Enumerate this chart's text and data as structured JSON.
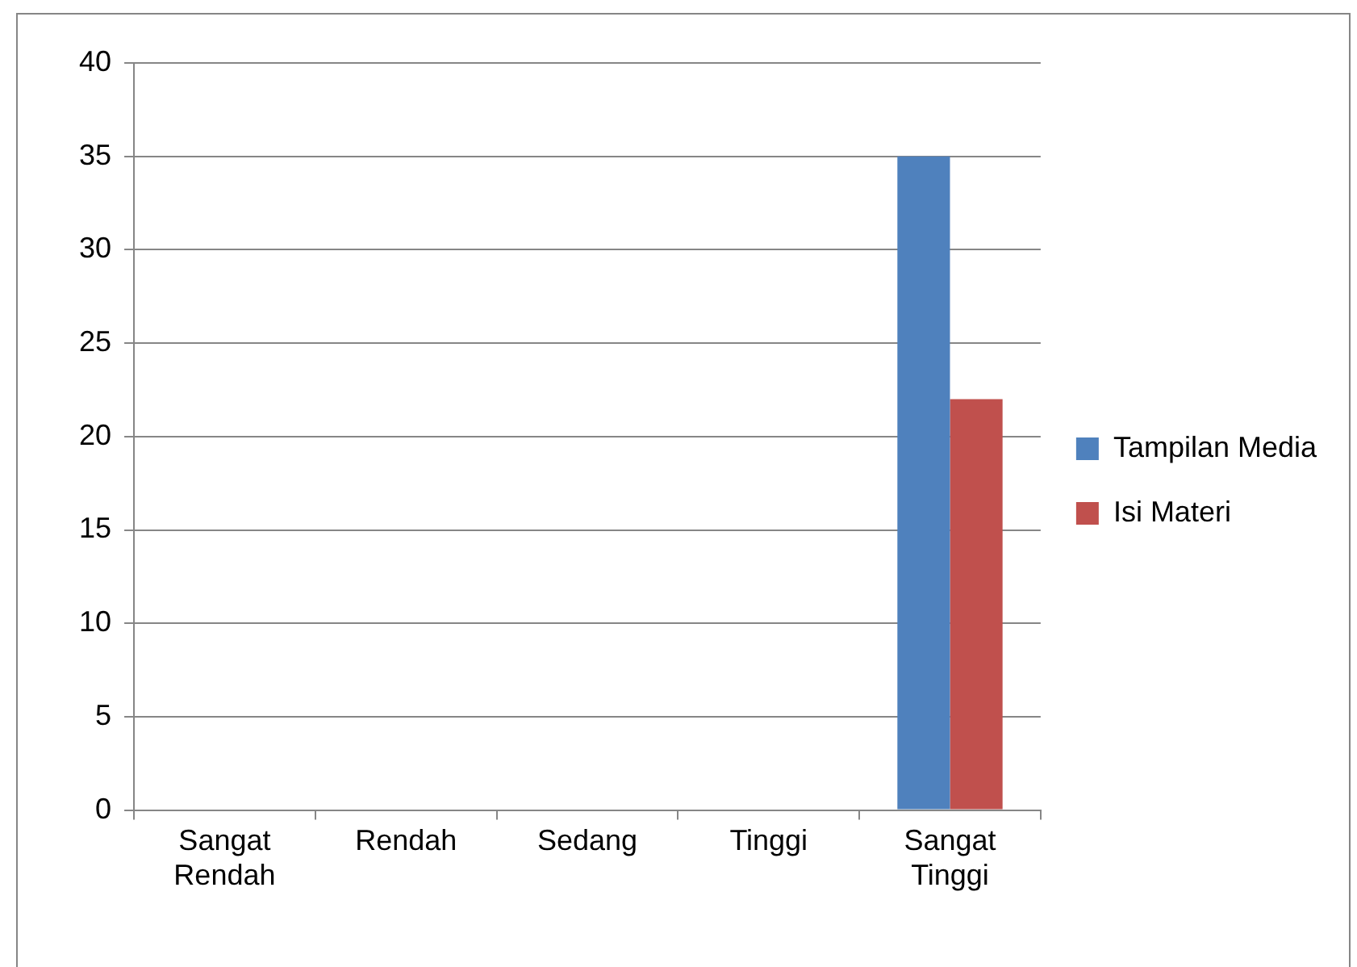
{
  "chart_data": {
    "type": "bar",
    "categories": [
      "Sangat Rendah",
      "Rendah",
      "Sedang",
      "Tinggi",
      "Sangat Tinggi"
    ],
    "series": [
      {
        "name": "Tampilan Media",
        "color": "#4f81bd",
        "values": [
          0,
          0,
          0,
          0,
          35
        ]
      },
      {
        "name": "Isi Materi",
        "color": "#c0504d",
        "values": [
          0,
          0,
          0,
          0,
          22
        ]
      }
    ],
    "ylim": [
      0,
      40
    ],
    "yticks": [
      0,
      5,
      10,
      15,
      20,
      25,
      30,
      35,
      40
    ],
    "grid": "y",
    "legend": "right"
  }
}
